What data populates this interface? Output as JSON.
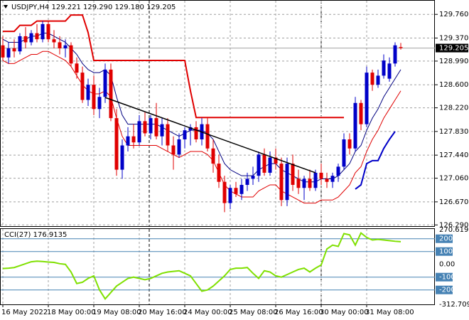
{
  "chart_data": [
    {
      "type": "candlestick",
      "title": "USDJPY,H4 129.221 129.290 129.180 129.205",
      "categories": [
        "16 May 2022",
        null,
        null,
        null,
        null,
        null,
        null,
        null,
        "18 May 00:00",
        null,
        null,
        null,
        null,
        null,
        null,
        null,
        "19 May 08:00",
        null,
        null,
        null,
        null,
        null,
        null,
        null,
        "20 May 16:00",
        null,
        null,
        null,
        null,
        null,
        null,
        null,
        "24 May 00:00",
        null,
        null,
        null,
        null,
        null,
        null,
        null,
        "25 May 08:00",
        null,
        null,
        null,
        null,
        null,
        null,
        null,
        "26 May 16:00",
        null,
        null,
        null,
        null,
        null,
        null,
        null,
        "30 May 00:00",
        null,
        null,
        null,
        null,
        null,
        null,
        null,
        "31 May 08:00",
        null,
        null,
        null,
        null,
        null,
        null
      ],
      "open": [
        129.25,
        129.05,
        129.2,
        129.15,
        129.4,
        129.3,
        129.45,
        129.35,
        129.6,
        129.35,
        129.3,
        129.2,
        129.25,
        128.95,
        128.8,
        128.35,
        128.6,
        128.2,
        128.4,
        128.85,
        128.05,
        127.2,
        127.6,
        127.75,
        127.65,
        128.0,
        127.8,
        128.05,
        127.75,
        127.95,
        127.6,
        127.45,
        127.7,
        127.85,
        127.9,
        127.7,
        127.95,
        127.55,
        127.3,
        127.0,
        126.65,
        126.9,
        126.8,
        126.95,
        127.05,
        127.1,
        127.45,
        127.15,
        127.4,
        127.3,
        126.7,
        127.3,
        127.05,
        126.9,
        127.05,
        126.9,
        127.15,
        127.05,
        127.0,
        127.1,
        127.25,
        127.7,
        127.55,
        128.3,
        127.95,
        128.8,
        128.6,
        128.75,
        128.7,
        128.95,
        129.221
      ],
      "high": [
        129.4,
        129.3,
        129.35,
        129.45,
        129.55,
        129.5,
        129.6,
        129.65,
        129.65,
        129.5,
        129.4,
        129.35,
        129.3,
        129.05,
        128.9,
        128.7,
        128.75,
        128.55,
        128.95,
        128.95,
        128.2,
        127.7,
        127.9,
        127.95,
        128.1,
        128.15,
        128.1,
        128.3,
        128.05,
        128.05,
        127.75,
        127.8,
        127.9,
        127.95,
        128.0,
        128.05,
        128.05,
        127.7,
        127.45,
        127.1,
        126.95,
        127.0,
        127.05,
        127.15,
        127.25,
        127.5,
        127.55,
        127.5,
        127.55,
        127.4,
        127.4,
        127.45,
        127.2,
        127.1,
        127.2,
        127.2,
        127.3,
        127.15,
        127.15,
        127.3,
        127.8,
        127.8,
        128.4,
        128.35,
        128.9,
        128.85,
        128.85,
        129.1,
        129.05,
        129.3,
        129.29
      ],
      "low": [
        129.0,
        128.95,
        129.05,
        129.1,
        129.2,
        129.25,
        129.3,
        129.3,
        129.3,
        129.2,
        129.1,
        129.05,
        128.9,
        128.7,
        128.3,
        128.25,
        128.1,
        128.05,
        128.3,
        128.0,
        127.1,
        127.05,
        127.5,
        127.55,
        127.6,
        127.75,
        127.7,
        127.7,
        127.6,
        127.5,
        127.2,
        127.4,
        127.55,
        127.6,
        127.65,
        127.6,
        127.5,
        127.15,
        126.9,
        126.5,
        126.55,
        126.75,
        126.7,
        126.85,
        126.95,
        127.0,
        127.1,
        127.1,
        127.2,
        126.6,
        126.6,
        126.85,
        126.8,
        126.7,
        126.85,
        126.85,
        126.95,
        126.9,
        126.9,
        127.0,
        127.2,
        127.45,
        127.5,
        127.85,
        127.9,
        128.5,
        128.55,
        128.7,
        128.65,
        128.9,
        129.18
      ],
      "close": [
        129.05,
        129.2,
        129.15,
        129.4,
        129.3,
        129.45,
        129.35,
        129.6,
        129.35,
        129.3,
        129.2,
        129.25,
        128.95,
        128.8,
        128.35,
        128.6,
        128.2,
        128.4,
        128.85,
        128.05,
        127.2,
        127.6,
        127.75,
        127.65,
        128.0,
        127.8,
        128.05,
        127.75,
        127.95,
        127.6,
        127.45,
        127.7,
        127.85,
        127.9,
        127.7,
        127.95,
        127.55,
        127.3,
        127.0,
        126.65,
        126.9,
        126.8,
        126.95,
        127.05,
        127.1,
        127.45,
        127.15,
        127.4,
        127.3,
        126.7,
        127.3,
        126.95,
        126.9,
        127.05,
        126.9,
        127.15,
        127.05,
        127.0,
        127.1,
        127.25,
        127.7,
        127.55,
        128.3,
        127.95,
        128.8,
        128.6,
        128.75,
        129.0,
        128.95,
        129.25,
        129.205
      ],
      "up_color": "#0000c8",
      "down_color": "#e00000",
      "overlays": [
        {
          "color": "#000080",
          "width": 1,
          "values": [
            129.35,
            129.3,
            129.3,
            129.3,
            129.35,
            129.4,
            129.4,
            129.45,
            129.45,
            129.4,
            129.35,
            129.3,
            129.2,
            129.1,
            128.95,
            128.85,
            128.8,
            128.8,
            128.85,
            128.75,
            128.4,
            128.1,
            127.95,
            127.95,
            127.95,
            127.95,
            127.95,
            127.95,
            127.9,
            127.85,
            127.8,
            127.75,
            127.8,
            127.85,
            127.85,
            127.85,
            127.8,
            127.7,
            127.5,
            127.3,
            127.2,
            127.15,
            127.1,
            127.1,
            127.1,
            127.2,
            127.25,
            127.3,
            127.3,
            127.2,
            127.15,
            127.1,
            127.05,
            127.0,
            127.0,
            127.0,
            127.05,
            127.05,
            127.05,
            127.1,
            127.2,
            127.3,
            127.5,
            127.6,
            127.85,
            128.05,
            128.2,
            128.4,
            128.55,
            128.7,
            128.85
          ]
        },
        {
          "color": "#e00000",
          "width": 1,
          "values": [
            129.0,
            128.95,
            128.95,
            129.0,
            129.05,
            129.1,
            129.1,
            129.15,
            129.15,
            129.1,
            129.05,
            129.0,
            128.9,
            128.75,
            128.6,
            128.5,
            128.45,
            128.45,
            128.5,
            128.4,
            128.05,
            127.75,
            127.6,
            127.6,
            127.6,
            127.6,
            127.6,
            127.6,
            127.55,
            127.5,
            127.45,
            127.4,
            127.45,
            127.5,
            127.5,
            127.5,
            127.45,
            127.35,
            127.15,
            126.95,
            126.85,
            126.8,
            126.75,
            126.75,
            126.75,
            126.85,
            126.9,
            126.95,
            126.95,
            126.85,
            126.8,
            126.75,
            126.7,
            126.65,
            126.65,
            126.65,
            126.7,
            126.7,
            126.7,
            126.75,
            126.85,
            126.95,
            127.15,
            127.25,
            127.5,
            127.7,
            127.85,
            128.05,
            128.2,
            128.35,
            128.5
          ]
        },
        {
          "color": "#e00000",
          "width": 2,
          "values": [
            129.48,
            129.48,
            129.48,
            129.58,
            129.58,
            129.58,
            129.65,
            129.65,
            129.65,
            129.65,
            129.65,
            129.65,
            129.75,
            129.75,
            129.75,
            129.46,
            129.0,
            129.0,
            129.0,
            129.0,
            129.0,
            129.0,
            129.0,
            129.0,
            129.0,
            129.0,
            129.0,
            129.0,
            129.0,
            129.0,
            129.0,
            129.0,
            129.0,
            128.5,
            128.06,
            128.06,
            128.06,
            128.06,
            128.06,
            128.06,
            128.06,
            128.06,
            128.06,
            128.06,
            128.06,
            128.06,
            128.06,
            128.06,
            128.06,
            128.06,
            128.06,
            128.06,
            128.06,
            128.06,
            128.06,
            128.06,
            128.06,
            128.06,
            128.06,
            128.06,
            128.06,
            null,
            null,
            null,
            null,
            null,
            null,
            null,
            null,
            null,
            null
          ]
        },
        {
          "color": "#0000c8",
          "width": 2,
          "values": [
            null,
            null,
            null,
            null,
            null,
            null,
            null,
            null,
            null,
            null,
            null,
            null,
            null,
            null,
            null,
            null,
            null,
            null,
            null,
            null,
            null,
            null,
            null,
            null,
            null,
            null,
            null,
            null,
            null,
            null,
            null,
            null,
            null,
            null,
            null,
            null,
            null,
            null,
            null,
            null,
            null,
            null,
            null,
            null,
            null,
            null,
            null,
            null,
            null,
            null,
            null,
            null,
            null,
            null,
            null,
            null,
            null,
            null,
            null,
            null,
            null,
            null,
            126.88,
            126.95,
            127.3,
            127.35,
            127.35,
            127.55,
            127.7,
            127.83,
            null
          ]
        }
      ],
      "trendline": {
        "x": [
          18,
          55
        ],
        "values": [
          128.39,
          127.15
        ],
        "color": "#000000"
      },
      "current_price": {
        "value": 129.205,
        "label": "129.205"
      },
      "ylim": [
        126.27,
        129.95
      ],
      "yticks": [
        {
          "value": 129.76,
          "label": "129.760"
        },
        {
          "value": 129.37,
          "label": "129.370"
        },
        {
          "value": 128.99,
          "label": "128.990"
        },
        {
          "value": 128.6,
          "label": "128.600"
        },
        {
          "value": 128.22,
          "label": "128.220"
        },
        {
          "value": 127.83,
          "label": "127.830"
        },
        {
          "value": 127.44,
          "label": "127.440"
        },
        {
          "value": 127.06,
          "label": "127.060"
        },
        {
          "value": 126.67,
          "label": "126.670"
        },
        {
          "value": 126.29,
          "label": "126.290"
        }
      ],
      "grid": true
    },
    {
      "type": "line",
      "series": [
        {
          "name": "CCI(27)",
          "color": "#7fe000",
          "values": [
            -33,
            -30,
            -25,
            -10,
            5,
            20,
            25,
            22,
            18,
            15,
            5,
            0,
            -60,
            -150,
            -140,
            -110,
            -90,
            -200,
            -270,
            -220,
            -170,
            -140,
            -110,
            -100,
            -110,
            -120,
            -110,
            -90,
            -70,
            -60,
            -55,
            -50,
            -70,
            -90,
            -150,
            -210,
            -200,
            -170,
            -130,
            -90,
            -40,
            -30,
            -30,
            -25,
            -70,
            -110,
            -50,
            -60,
            -90,
            -100,
            -80,
            -60,
            -40,
            -30,
            -60,
            -30,
            -5,
            120,
            150,
            140,
            240,
            230,
            150,
            245,
            210,
            190,
            195,
            190,
            185,
            180,
            176.9135
          ]
        }
      ],
      "ylim": [
        -312.7092,
        270.6198
      ],
      "yticks": [
        270.6198,
        200,
        100,
        {
          "value": 0,
          "label": "0.00"
        },
        -100,
        -200,
        -312.7092
      ],
      "grid": true
    }
  ]
}
